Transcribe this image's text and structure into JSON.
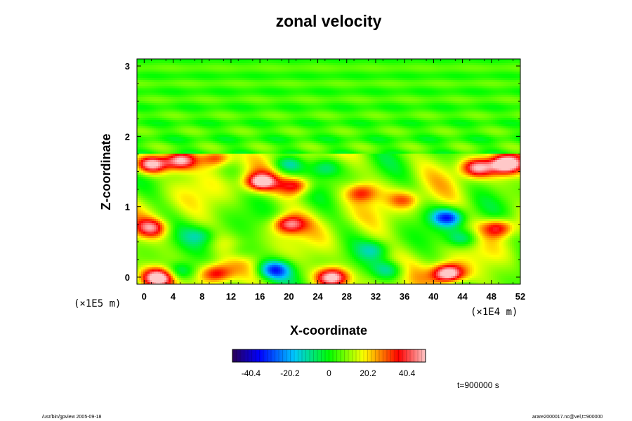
{
  "chart_data": {
    "type": "heatmap",
    "title": "zonal velocity",
    "xlabel": "X-coordinate",
    "ylabel": "Z-coordinate",
    "x_scale_label": "(×1E4 m)",
    "y_scale_label": "(×1E5 m)",
    "xlim": [
      -1,
      52
    ],
    "ylim": [
      -0.1,
      3.1
    ],
    "x_ticks": [
      "0",
      "4",
      "8",
      "12",
      "16",
      "20",
      "24",
      "28",
      "32",
      "36",
      "40",
      "44",
      "48",
      "52"
    ],
    "y_ticks": [
      "0",
      "1",
      "2",
      "3"
    ],
    "colorbar": {
      "range": [
        -50,
        50
      ],
      "ticks": [
        "-40.4",
        "-20.2",
        "0",
        "20.2",
        "40.4"
      ],
      "tick_values": [
        -40.4,
        -20.2,
        0,
        20.2,
        40.4
      ]
    },
    "colors": {
      "min": "#2a0055",
      "neg": "#0000ff",
      "mid_neg": "#00c8ff",
      "zero": "#00ff00",
      "mid_pos": "#ffff00",
      "pos": "#ff0000",
      "max": "#ffc8c8"
    },
    "features": [
      {
        "x": 1,
        "z": 1.6,
        "value": 48
      },
      {
        "x": 5,
        "z": 1.65,
        "value": 40
      },
      {
        "x": 10,
        "z": 1.7,
        "value": 32
      },
      {
        "x": 16,
        "z": 1.35,
        "value": 42
      },
      {
        "x": 21,
        "z": 1.3,
        "value": 30
      },
      {
        "x": 20,
        "z": 1.6,
        "value": -22
      },
      {
        "x": 25,
        "z": 1.55,
        "value": -16
      },
      {
        "x": 50,
        "z": 1.6,
        "value": 48
      },
      {
        "x": 46,
        "z": 1.55,
        "value": 36
      },
      {
        "x": 20,
        "z": 0.75,
        "value": 34
      },
      {
        "x": 1,
        "z": 0.7,
        "value": 30
      },
      {
        "x": 49,
        "z": 0.7,
        "value": 32
      },
      {
        "x": 8,
        "z": 0.6,
        "value": -14
      },
      {
        "x": 42,
        "z": 0.85,
        "value": -40
      },
      {
        "x": 44,
        "z": 0.55,
        "value": -18
      },
      {
        "x": 2,
        "z": 0,
        "value": 46
      },
      {
        "x": 26,
        "z": 0,
        "value": 46
      },
      {
        "x": 42,
        "z": 0.05,
        "value": 52
      },
      {
        "x": 10,
        "z": 0.05,
        "value": 28
      },
      {
        "x": 18,
        "z": 0.1,
        "value": -36
      },
      {
        "x": 5,
        "z": 0.08,
        "value": -22
      },
      {
        "x": 34,
        "z": 0.1,
        "value": -18
      },
      {
        "x": 32,
        "z": 0.4,
        "value": -14
      },
      {
        "x": 30,
        "z": 1.2,
        "value": 22
      },
      {
        "x": 36,
        "z": 1.1,
        "value": 18
      },
      {
        "x": 13,
        "z": 0.35,
        "value": -12
      }
    ]
  },
  "footer": {
    "left": "/usr/bin/gpview 2005-09-18",
    "right": "arare2000017.nc@vel,t=900000",
    "time": "t=900000 s"
  }
}
